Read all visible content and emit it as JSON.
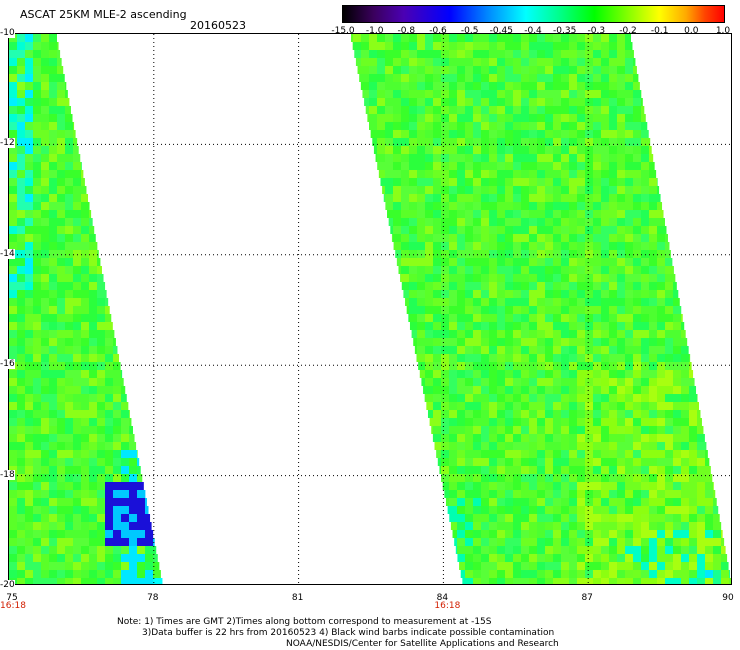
{
  "header": {
    "title": "ASCAT 25KM MLE-2 ascending",
    "date": "20160523"
  },
  "colorbar": {
    "tick_labels": [
      "-15.0",
      "-1.0",
      "-0.8",
      "-0.6",
      "-0.5",
      "-0.45",
      "-0.4",
      "-0.35",
      "-0.3",
      "-0.2",
      "-0.1",
      "0.0",
      "1.0"
    ],
    "colors": [
      "#000000",
      "#3a005c",
      "#4b00b4",
      "#0000ff",
      "#0088ff",
      "#00ffff",
      "#00ff88",
      "#00ff00",
      "#88ff00",
      "#ffff00",
      "#ffaa00",
      "#ff4400",
      "#ff0000"
    ]
  },
  "map": {
    "lon_range": [
      75,
      90
    ],
    "lat_range": [
      -20,
      -10
    ],
    "x_ticks": [
      "75",
      "78",
      "81",
      "84",
      "87",
      "90"
    ],
    "y_ticks": [
      "-10",
      "-12",
      "-14",
      "-16",
      "-18",
      "-20"
    ],
    "time_labels": [
      {
        "lon": 75,
        "text": "16:18"
      },
      {
        "lon": 84,
        "text": "16:18"
      }
    ],
    "gridlines": "dotted"
  },
  "notes": {
    "line1": "Note: 1) Times are GMT 2)Times along bottom correspond to measurement at -15S",
    "line2": "3)Data buffer is 22 hrs from 20160523 4) Black wind barbs indicate possible contamination",
    "line3": "NOAA/NESDIS/Center for Satellite Applications and Research"
  }
}
